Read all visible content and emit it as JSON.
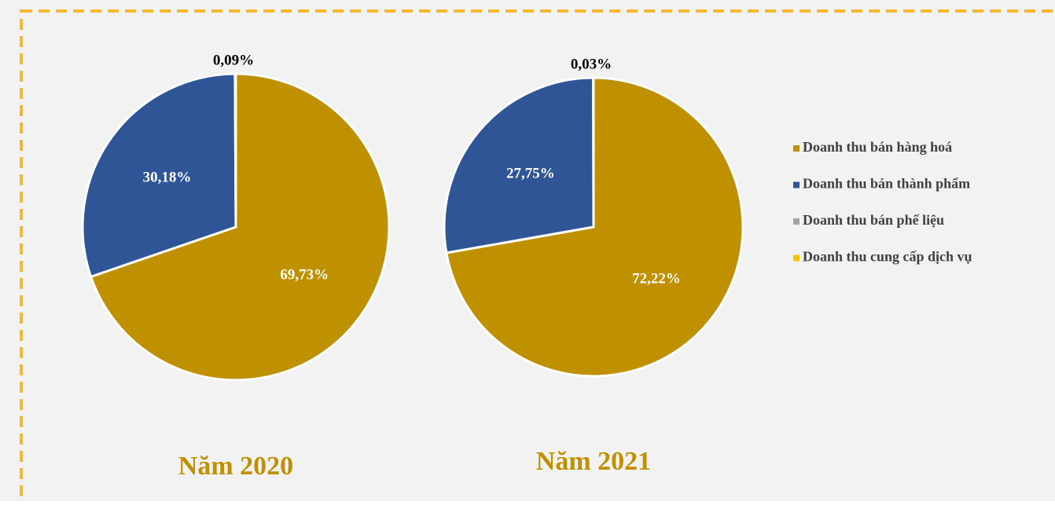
{
  "chart_data": [
    {
      "type": "pie",
      "title": "Năm 2020",
      "categories": [
        "Doanh thu bán hàng hoá",
        "Doanh thu bán thành phẩm",
        "Doanh thu bán phế liệu",
        "Doanh thu cung cấp dịch vụ"
      ],
      "values": [
        69.73,
        30.18,
        0.09,
        0
      ],
      "value_labels": [
        "69,73%",
        "30,18%",
        "0,09%",
        null
      ],
      "colors": [
        "#bf9000",
        "#2f5597",
        "#a5a5a5",
        "#ffc000"
      ],
      "legend": "right"
    },
    {
      "type": "pie",
      "title": "Năm 2021",
      "categories": [
        "Doanh thu bán hàng hoá",
        "Doanh thu bán thành phẩm",
        "Doanh thu bán phế liệu",
        "Doanh thu cung cấp dịch vụ"
      ],
      "values": [
        72.22,
        27.75,
        0.03,
        0
      ],
      "value_labels": [
        "72,22%",
        "27,75%",
        "0,03%",
        null
      ],
      "colors": [
        "#bf9000",
        "#2f5597",
        "#a5a5a5",
        "#ffc000"
      ],
      "legend": "right"
    }
  ]
}
